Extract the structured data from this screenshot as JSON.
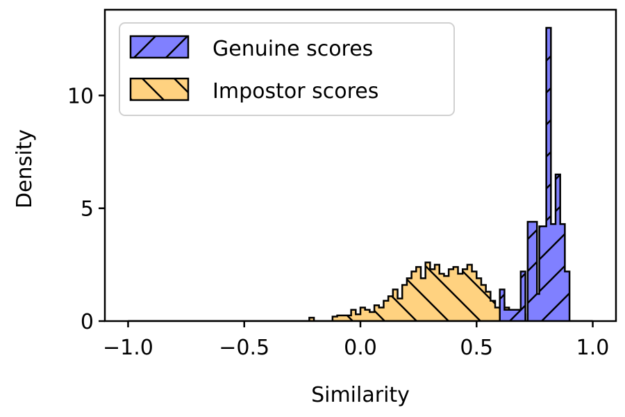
{
  "chart_data": {
    "type": "histogram",
    "xlabel": "Similarity",
    "ylabel": "Density",
    "xlim": [
      -1.1,
      1.1
    ],
    "ylim": [
      0,
      13.8
    ],
    "xticks": [
      -1.0,
      -0.5,
      0.0,
      0.5,
      1.0
    ],
    "xtick_labels": [
      "−1.0",
      "−0.5",
      "0.0",
      "0.5",
      "1.0"
    ],
    "yticks": [
      0,
      5,
      10
    ],
    "ytick_labels": [
      "0",
      "5",
      "10"
    ],
    "legend_position": "top-left",
    "series": [
      {
        "name": "Genuine scores",
        "color": "#8080ff",
        "hatch": "forward-diagonal",
        "steps": [
          [
            -1.0,
            0
          ],
          [
            0.6,
            0
          ],
          [
            0.6,
            1.4
          ],
          [
            0.62,
            1.4
          ],
          [
            0.62,
            0.5
          ],
          [
            0.69,
            0.5
          ],
          [
            0.69,
            2.2
          ],
          [
            0.71,
            2.2
          ],
          [
            0.71,
            0
          ],
          [
            0.72,
            0
          ],
          [
            0.72,
            4.4
          ],
          [
            0.76,
            4.4
          ],
          [
            0.76,
            1.2
          ],
          [
            0.77,
            1.2
          ],
          [
            0.77,
            4.2
          ],
          [
            0.8,
            4.2
          ],
          [
            0.8,
            13.0
          ],
          [
            0.82,
            13.0
          ],
          [
            0.82,
            4.3
          ],
          [
            0.84,
            4.3
          ],
          [
            0.84,
            6.5
          ],
          [
            0.86,
            6.5
          ],
          [
            0.86,
            4.3
          ],
          [
            0.88,
            4.3
          ],
          [
            0.88,
            2.2
          ],
          [
            0.9,
            2.2
          ],
          [
            0.9,
            0
          ],
          [
            1.0,
            0
          ]
        ]
      },
      {
        "name": "Impostor scores",
        "color": "#ffd280",
        "hatch": "back-diagonal",
        "steps": [
          [
            -1.0,
            0
          ],
          [
            -0.22,
            0
          ],
          [
            -0.22,
            0.15
          ],
          [
            -0.2,
            0.15
          ],
          [
            -0.2,
            0
          ],
          [
            -0.12,
            0
          ],
          [
            -0.12,
            0.2
          ],
          [
            -0.1,
            0.2
          ],
          [
            -0.1,
            0.25
          ],
          [
            -0.04,
            0.25
          ],
          [
            -0.04,
            0.5
          ],
          [
            -0.02,
            0.5
          ],
          [
            -0.02,
            0.3
          ],
          [
            0.0,
            0.3
          ],
          [
            0.0,
            0.6
          ],
          [
            0.02,
            0.6
          ],
          [
            0.02,
            0.5
          ],
          [
            0.04,
            0.5
          ],
          [
            0.04,
            0.4
          ],
          [
            0.06,
            0.4
          ],
          [
            0.06,
            0.7
          ],
          [
            0.08,
            0.7
          ],
          [
            0.08,
            0.6
          ],
          [
            0.1,
            0.6
          ],
          [
            0.1,
            0.9
          ],
          [
            0.12,
            0.9
          ],
          [
            0.12,
            1.1
          ],
          [
            0.14,
            1.1
          ],
          [
            0.14,
            1.4
          ],
          [
            0.16,
            1.4
          ],
          [
            0.16,
            1.0
          ],
          [
            0.18,
            1.0
          ],
          [
            0.18,
            1.6
          ],
          [
            0.2,
            1.6
          ],
          [
            0.2,
            1.9
          ],
          [
            0.22,
            1.9
          ],
          [
            0.22,
            2.2
          ],
          [
            0.24,
            2.2
          ],
          [
            0.24,
            2.4
          ],
          [
            0.26,
            2.4
          ],
          [
            0.26,
            1.9
          ],
          [
            0.28,
            1.9
          ],
          [
            0.28,
            2.6
          ],
          [
            0.3,
            2.6
          ],
          [
            0.3,
            2.3
          ],
          [
            0.32,
            2.3
          ],
          [
            0.32,
            2.5
          ],
          [
            0.34,
            2.5
          ],
          [
            0.34,
            2.1
          ],
          [
            0.36,
            2.1
          ],
          [
            0.36,
            2.0
          ],
          [
            0.38,
            2.0
          ],
          [
            0.38,
            2.3
          ],
          [
            0.4,
            2.3
          ],
          [
            0.4,
            2.4
          ],
          [
            0.42,
            2.4
          ],
          [
            0.42,
            2.1
          ],
          [
            0.44,
            2.1
          ],
          [
            0.44,
            2.3
          ],
          [
            0.46,
            2.3
          ],
          [
            0.46,
            2.5
          ],
          [
            0.48,
            2.5
          ],
          [
            0.48,
            2.2
          ],
          [
            0.5,
            2.2
          ],
          [
            0.5,
            1.9
          ],
          [
            0.52,
            1.9
          ],
          [
            0.52,
            1.6
          ],
          [
            0.54,
            1.6
          ],
          [
            0.54,
            1.3
          ],
          [
            0.56,
            1.3
          ],
          [
            0.56,
            0.9
          ],
          [
            0.58,
            0.9
          ],
          [
            0.58,
            0.6
          ],
          [
            0.6,
            0.6
          ],
          [
            0.6,
            0.8
          ],
          [
            0.62,
            0.8
          ],
          [
            0.62,
            0.6
          ],
          [
            0.64,
            0.6
          ],
          [
            0.64,
            0.4
          ],
          [
            0.66,
            0.4
          ],
          [
            0.66,
            0.2
          ],
          [
            0.69,
            0.2
          ],
          [
            0.69,
            0.3
          ],
          [
            0.71,
            0.3
          ],
          [
            0.71,
            0
          ],
          [
            1.0,
            0
          ]
        ]
      }
    ]
  }
}
